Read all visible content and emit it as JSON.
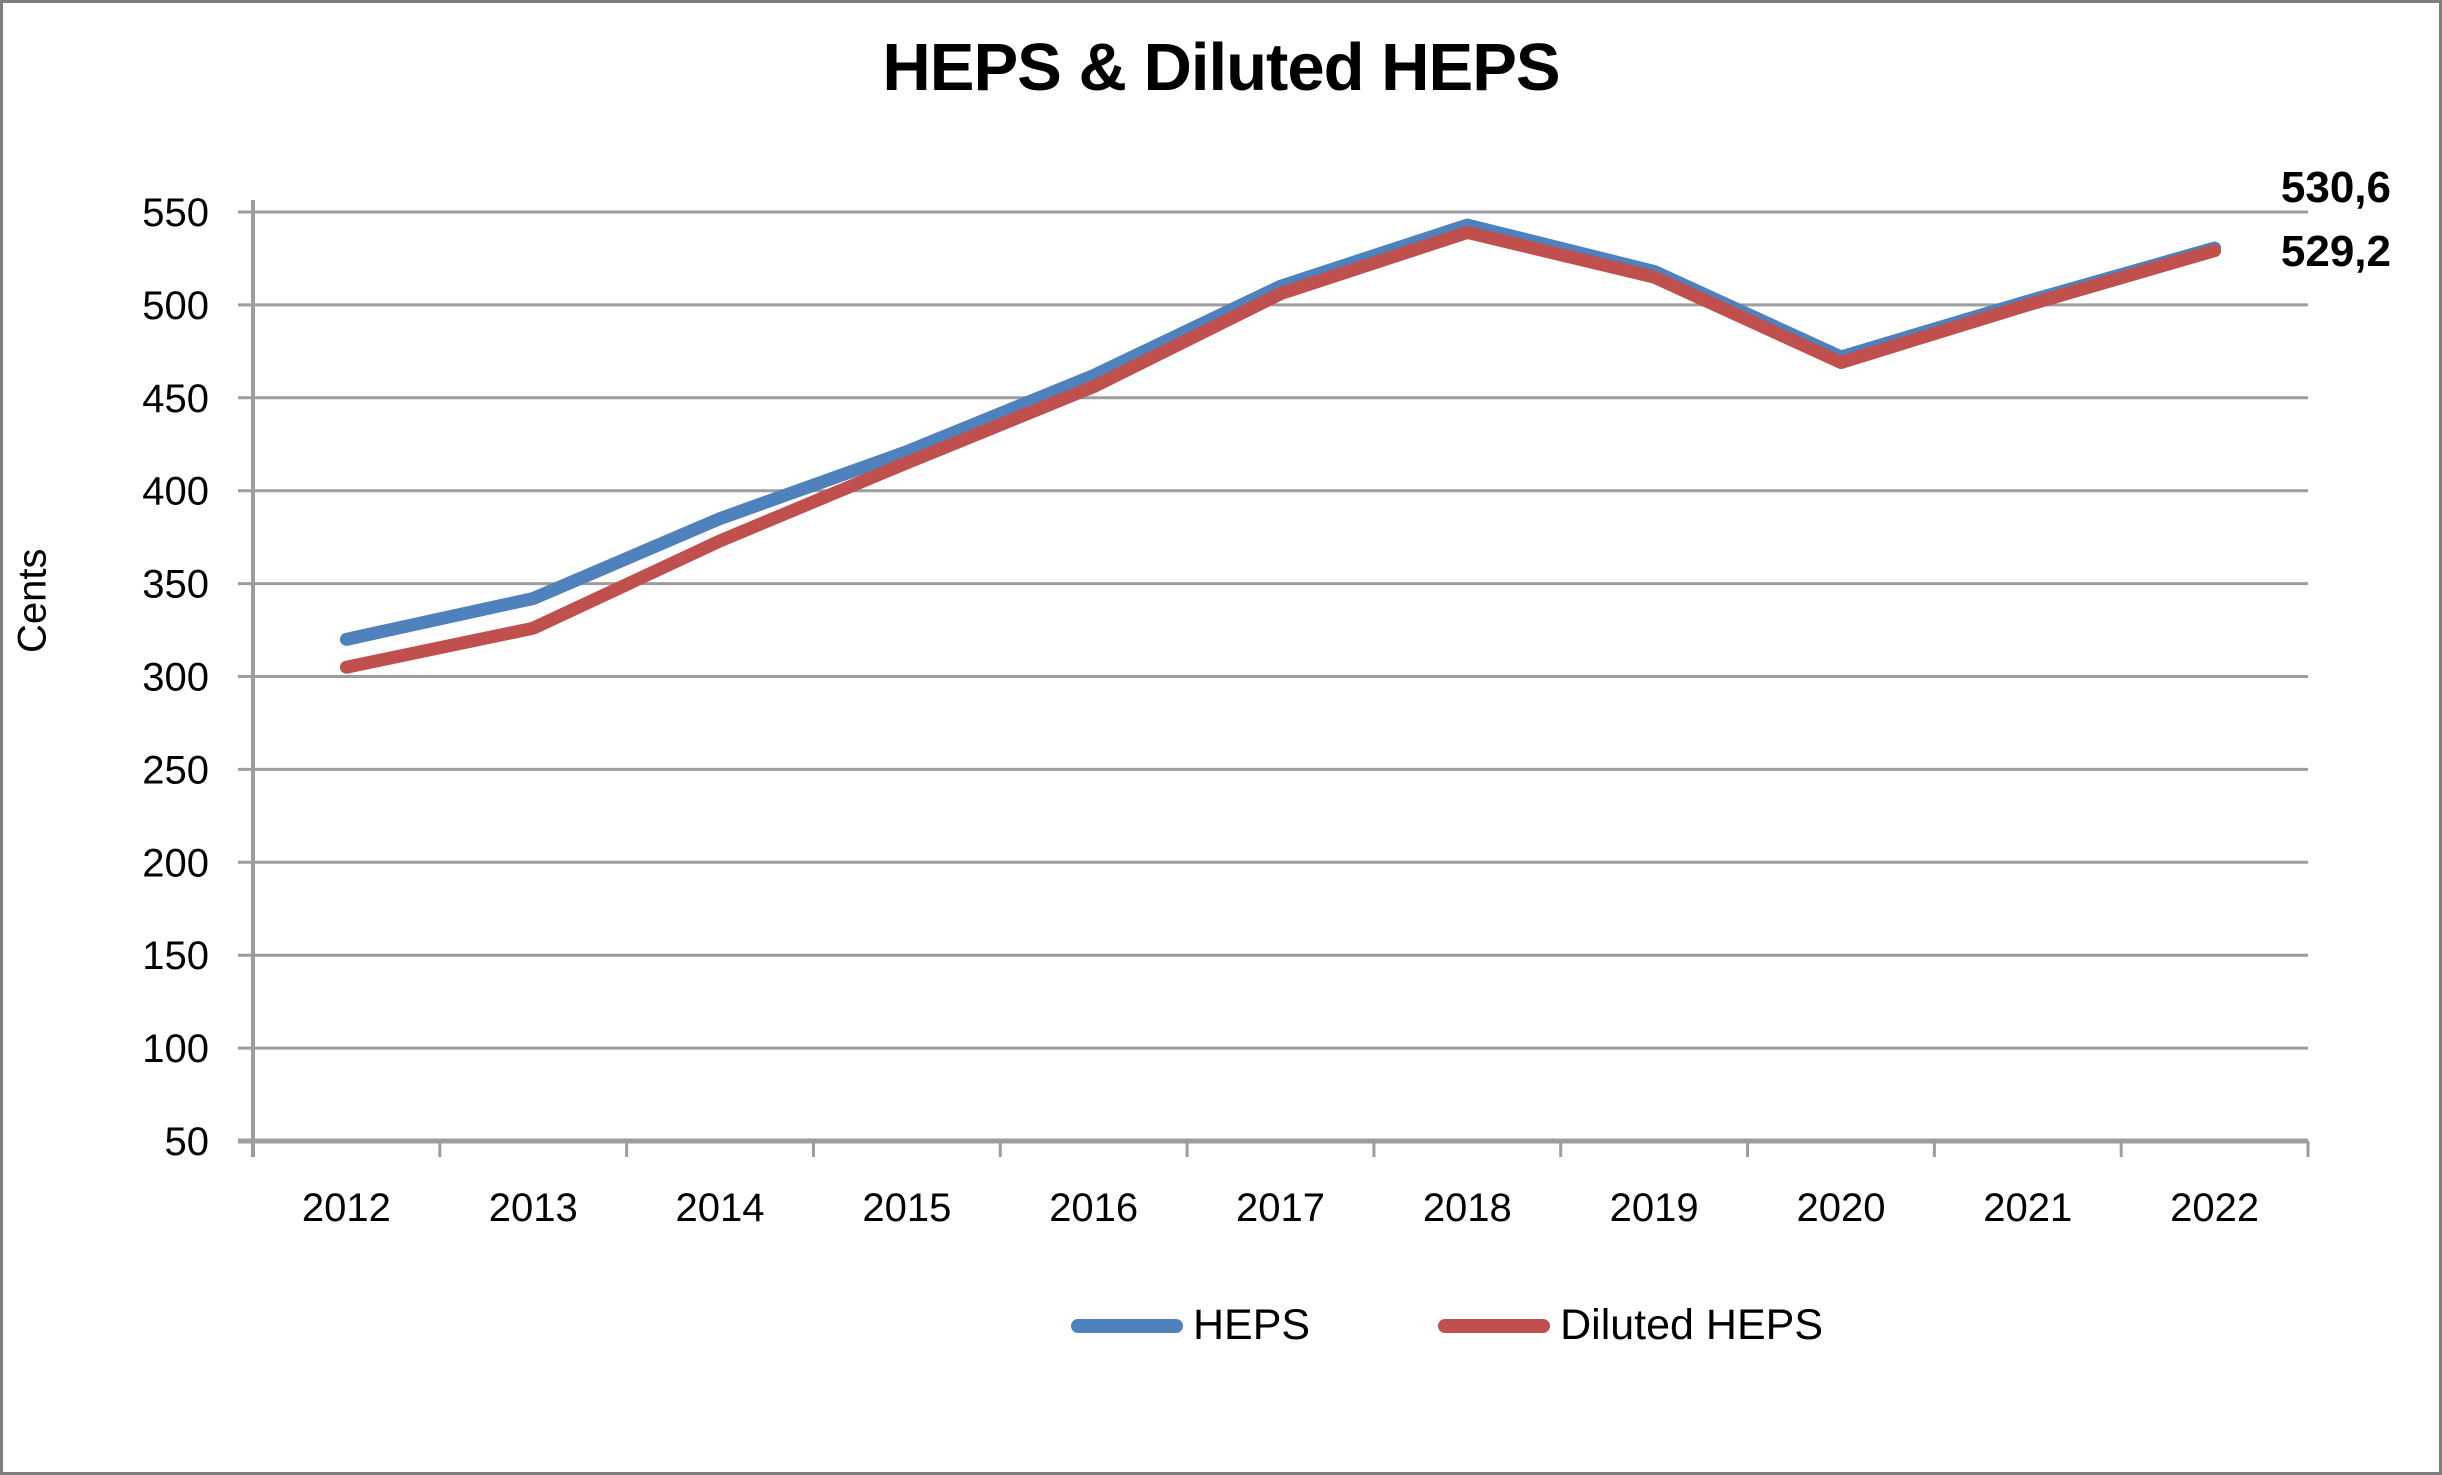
{
  "chart_data": {
    "type": "line",
    "title": "HEPS & Diluted HEPS",
    "ylabel": "Cents",
    "xlabel": "",
    "categories": [
      "2012",
      "2013",
      "2014",
      "2015",
      "2016",
      "2017",
      "2018",
      "2019",
      "2020",
      "2021",
      "2022"
    ],
    "series": [
      {
        "name": "HEPS",
        "color": "#4F81BD",
        "values": [
          320,
          342,
          385,
          421,
          462,
          510,
          543,
          518,
          472,
          502,
          530.6
        ]
      },
      {
        "name": "Diluted HEPS",
        "color": "#C0504D",
        "values": [
          305,
          326,
          373,
          415,
          456,
          506,
          539,
          515,
          469,
          500,
          529.2
        ]
      }
    ],
    "end_labels": [
      "530,6",
      "529,2"
    ],
    "ylim": [
      50,
      550
    ],
    "y_ticks": [
      550,
      500,
      450,
      400,
      350,
      300,
      250,
      200,
      150,
      100,
      50
    ],
    "grid": true,
    "legend_position": "bottom",
    "grid_color": "#9d9d9d",
    "text_color": "#000000"
  }
}
